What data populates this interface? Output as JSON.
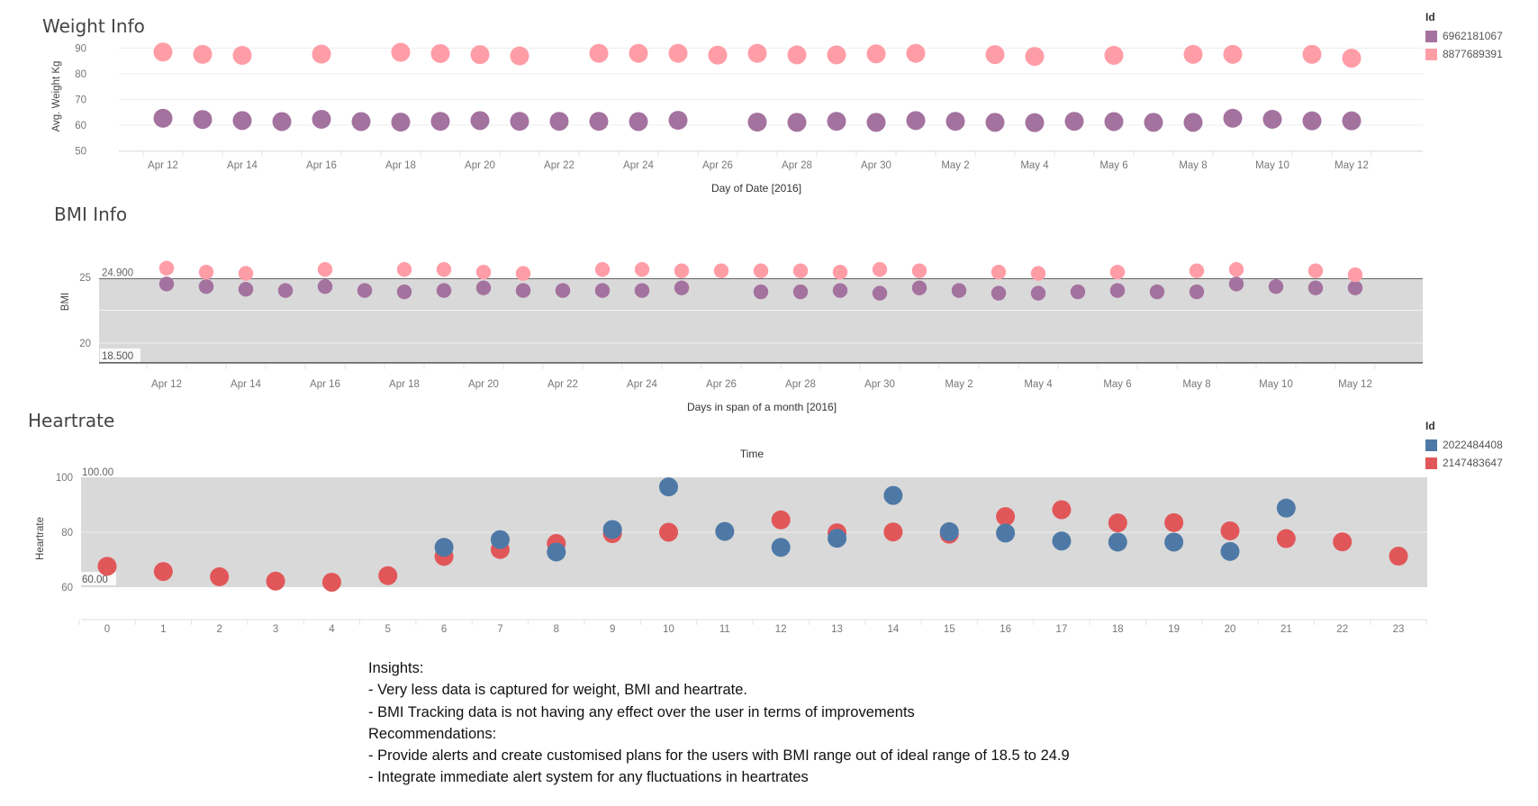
{
  "charts": {
    "weight": {
      "title": "Weight Info",
      "ylabel": "Avg. Weight Kg",
      "xlabel": "Day of Date [2016]",
      "yticks": [
        "50",
        "60",
        "70",
        "80",
        "90"
      ],
      "xticks": [
        "Apr 12",
        "Apr 14",
        "Apr 16",
        "Apr 18",
        "Apr 20",
        "Apr 22",
        "Apr 24",
        "Apr 26",
        "Apr 28",
        "Apr 30",
        "May 2",
        "May 4",
        "May 6",
        "May 8",
        "May 10",
        "May 12"
      ]
    },
    "bmi": {
      "title": "BMI Info",
      "ylabel": "BMI",
      "xlabel": "Days in span of a month [2016]",
      "yticks": [
        "20",
        "25"
      ],
      "band_upper_label": "24.900",
      "band_lower_label": "18.500",
      "xticks": [
        "Apr 12",
        "Apr 14",
        "Apr 16",
        "Apr 18",
        "Apr 20",
        "Apr 22",
        "Apr 24",
        "Apr 26",
        "Apr 28",
        "Apr 30",
        "May 2",
        "May 4",
        "May 6",
        "May 8",
        "May 10",
        "May 12"
      ]
    },
    "heart": {
      "title": "Heartrate",
      "top_label": "Time",
      "ylabel": "Heartrate",
      "yticks": [
        "60",
        "80",
        "100"
      ],
      "band_upper_label": "100.00",
      "band_lower_label": "60.00",
      "xticks": [
        "0",
        "1",
        "2",
        "3",
        "4",
        "5",
        "6",
        "7",
        "8",
        "9",
        "10",
        "11",
        "12",
        "13",
        "14",
        "15",
        "16",
        "17",
        "18",
        "19",
        "20",
        "21",
        "22",
        "23"
      ]
    }
  },
  "legends": {
    "weight": {
      "title": "Id",
      "items": [
        {
          "label": "6962181067",
          "color": "#a4729f"
        },
        {
          "label": "8877689391",
          "color": "#ff9da7"
        }
      ]
    },
    "heart": {
      "title": "Id",
      "items": [
        {
          "label": "2022484408",
          "color": "#4e79a7"
        },
        {
          "label": "2147483647",
          "color": "#e15759"
        }
      ]
    }
  },
  "colors": {
    "purple": "#a4729f",
    "pink": "#ff9da7",
    "blue": "#4e79a7",
    "red": "#e15759",
    "band": "#d9d9d9"
  },
  "insights": {
    "l1": "Insights:",
    "l2": "- Very less data is captured for weight, BMI and heartrate.",
    "l3": "- BMI Tracking data is not having any effect over the user in terms of improvements",
    "l4": "Recommendations:",
    "l5": "- Provide alerts and create customised plans for the users with BMI range out of ideal range of 18.5 to 24.9",
    "l6": "- Integrate immediate alert system for any fluctuations in heartrates"
  },
  "chart_data": [
    {
      "type": "scatter",
      "title": "Weight Info",
      "xlabel": "Day of Date [2016]",
      "ylabel": "Avg. Weight Kg",
      "ylim": [
        50,
        90
      ],
      "x": [
        "Apr 12",
        "Apr 13",
        "Apr 14",
        "Apr 15",
        "Apr 16",
        "Apr 17",
        "Apr 18",
        "Apr 19",
        "Apr 20",
        "Apr 21",
        "Apr 22",
        "Apr 23",
        "Apr 24",
        "Apr 25",
        "Apr 26",
        "Apr 27",
        "Apr 28",
        "Apr 29",
        "Apr 30",
        "May 1",
        "May 2",
        "May 3",
        "May 4",
        "May 5",
        "May 6",
        "May 7",
        "May 8",
        "May 9",
        "May 10",
        "May 11",
        "May 12"
      ],
      "series": [
        {
          "name": "6962181067",
          "values": [
            62.7,
            62.2,
            61.8,
            61.4,
            62.3,
            61.4,
            61.2,
            61.5,
            61.8,
            61.5,
            61.5,
            61.5,
            61.4,
            61.9,
            null,
            61.2,
            61.1,
            61.5,
            61.1,
            61.8,
            61.5,
            61.1,
            61.0,
            61.5,
            61.4,
            61.1,
            61.1,
            62.7,
            62.3,
            61.7,
            61.7
          ]
        },
        {
          "name": "8877689391",
          "values": [
            88.5,
            87.6,
            87.2,
            null,
            87.7,
            null,
            88.4,
            87.9,
            87.5,
            87.0,
            null,
            88.0,
            88.0,
            88.0,
            87.3,
            88.0,
            87.4,
            87.4,
            87.8,
            88.0,
            null,
            87.5,
            86.8,
            null,
            87.2,
            null,
            87.6,
            87.6,
            null,
            87.6,
            86.1
          ]
        }
      ]
    },
    {
      "type": "scatter",
      "title": "BMI Info",
      "xlabel": "Days in span of a month [2016]",
      "ylabel": "BMI",
      "reference_band": [
        18.5,
        24.9
      ],
      "x": [
        "Apr 12",
        "Apr 13",
        "Apr 14",
        "Apr 15",
        "Apr 16",
        "Apr 17",
        "Apr 18",
        "Apr 19",
        "Apr 20",
        "Apr 21",
        "Apr 22",
        "Apr 23",
        "Apr 24",
        "Apr 25",
        "Apr 26",
        "Apr 27",
        "Apr 28",
        "Apr 29",
        "Apr 30",
        "May 1",
        "May 2",
        "May 3",
        "May 4",
        "May 5",
        "May 6",
        "May 7",
        "May 8",
        "May 9",
        "May 10",
        "May 11",
        "May 12"
      ],
      "series": [
        {
          "name": "6962181067",
          "values": [
            24.5,
            24.3,
            24.1,
            24.0,
            24.3,
            24.0,
            23.9,
            24.0,
            24.2,
            24.0,
            24.0,
            24.0,
            24.0,
            24.2,
            null,
            23.9,
            23.9,
            24.0,
            23.8,
            24.2,
            24.0,
            23.8,
            23.8,
            23.9,
            24.0,
            23.9,
            23.9,
            24.5,
            24.3,
            24.2,
            24.2
          ]
        },
        {
          "name": "8877689391",
          "values": [
            25.7,
            25.4,
            25.3,
            null,
            25.6,
            null,
            25.6,
            25.6,
            25.4,
            25.3,
            null,
            25.6,
            25.6,
            25.5,
            25.5,
            25.5,
            25.5,
            25.4,
            25.6,
            25.5,
            null,
            25.4,
            25.3,
            null,
            25.4,
            null,
            25.5,
            25.6,
            null,
            25.5,
            25.2
          ]
        }
      ]
    },
    {
      "type": "scatter",
      "title": "Heartrate",
      "xlabel": "Time",
      "ylabel": "Heartrate",
      "reference_band": [
        60,
        100
      ],
      "x": [
        0,
        1,
        2,
        3,
        4,
        5,
        6,
        7,
        8,
        9,
        10,
        11,
        12,
        13,
        14,
        15,
        16,
        17,
        18,
        19,
        20,
        21,
        22,
        23
      ],
      "series": [
        {
          "name": "2022484408",
          "values": [
            null,
            null,
            null,
            null,
            null,
            null,
            74.5,
            77.3,
            72.8,
            81.0,
            96.5,
            80.3,
            74.5,
            77.8,
            93.4,
            80.2,
            79.7,
            76.8,
            76.4,
            76.4,
            73.0,
            88.8,
            null,
            null
          ]
        },
        {
          "name": "2147483647",
          "values": [
            67.6,
            65.7,
            63.8,
            62.2,
            61.8,
            64.2,
            71.2,
            73.7,
            75.9,
            79.5,
            80.0,
            null,
            84.5,
            79.8,
            80.1,
            79.3,
            85.7,
            88.2,
            83.4,
            83.5,
            80.5,
            77.7,
            76.5,
            71.3
          ]
        }
      ]
    }
  ]
}
